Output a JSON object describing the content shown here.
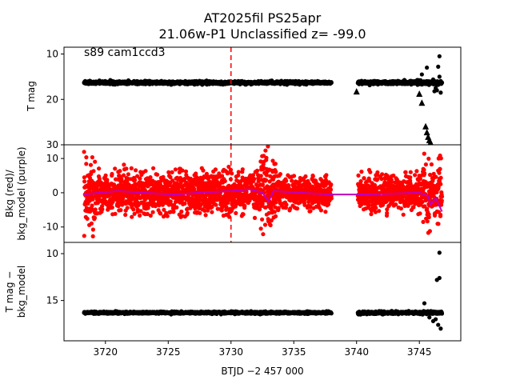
{
  "title_line1": "AT2025fil  PS25apr",
  "title_line2": "21.06w-P1 Unclassified z= -99.0",
  "xlabel": "BTJD −2 457 000",
  "annotation": "s89 cam1ccd3",
  "colors": {
    "points": "#000000",
    "bkg": "#ff0000",
    "model": "#bf00bf",
    "marker": "#ff0000"
  },
  "chart_data": [
    {
      "type": "scatter",
      "name": "light-curve",
      "ylabel": "T mag",
      "y_inverted": true,
      "xlim": [
        3716.7,
        3748.3
      ],
      "ylim": [
        30,
        8.5
      ],
      "yticks": [
        10,
        20,
        30
      ],
      "xticks": [],
      "vline": {
        "x": 3730.0,
        "style": "dashed"
      },
      "segments": [
        {
          "x": [
            3718.3,
            3738.0
          ],
          "y": 16.3,
          "noise": 0.35
        },
        {
          "x": [
            3740.1,
            3746.8
          ],
          "y": 16.3,
          "noise": 0.4
        }
      ],
      "outliers": [
        {
          "x": 3745.2,
          "y": 14.5
        },
        {
          "x": 3745.6,
          "y": 13.0
        },
        {
          "x": 3746.0,
          "y": 16.0
        },
        {
          "x": 3746.1,
          "y": 15.6
        },
        {
          "x": 3746.3,
          "y": 17.5
        },
        {
          "x": 3746.4,
          "y": 18.0
        },
        {
          "x": 3746.5,
          "y": 16.8
        },
        {
          "x": 3746.7,
          "y": 18.5
        },
        {
          "x": 3746.6,
          "y": 15.0
        },
        {
          "x": 3746.6,
          "y": 10.5
        },
        {
          "x": 3746.5,
          "y": 12.8
        },
        {
          "x": 3746.2,
          "y": 18.2
        }
      ],
      "upper_limits": [
        {
          "x": 3740.0,
          "y": 18.3
        },
        {
          "x": 3745.0,
          "y": 18.8
        },
        {
          "x": 3745.2,
          "y": 20.8
        },
        {
          "x": 3745.5,
          "y": 26.0
        },
        {
          "x": 3745.6,
          "y": 27.3
        },
        {
          "x": 3745.7,
          "y": 28.3
        },
        {
          "x": 3745.8,
          "y": 29.0
        },
        {
          "x": 3745.9,
          "y": 29.6
        },
        {
          "x": 3745.8,
          "y": 30.0
        }
      ]
    },
    {
      "type": "scatter",
      "name": "background",
      "ylabel_lines": [
        "Bkg (red)/",
        "bkg_model (purple)"
      ],
      "xlim": [
        3716.7,
        3748.3
      ],
      "ylim": [
        -14.5,
        14.0
      ],
      "yticks": [
        -10,
        0,
        10
      ],
      "xticks": [],
      "vline": {
        "x": 3730.0,
        "style": "dashed"
      },
      "segments": [
        {
          "x": [
            3718.3,
            3733.0
          ],
          "mean": 0.0,
          "noise": 4.5
        },
        {
          "x": [
            3733.0,
            3738.0
          ],
          "mean": 0.0,
          "noise": 3.5
        },
        {
          "x": [
            3740.1,
            3746.8
          ],
          "mean": 0.0,
          "noise": 4.0
        }
      ],
      "model": [
        {
          "x": 3718.3,
          "y": -0.5
        },
        {
          "x": 3719.5,
          "y": 0.0
        },
        {
          "x": 3721.0,
          "y": 0.5
        },
        {
          "x": 3723.0,
          "y": 0.0
        },
        {
          "x": 3725.5,
          "y": -0.5
        },
        {
          "x": 3727.5,
          "y": 0.0
        },
        {
          "x": 3730.0,
          "y": 0.5
        },
        {
          "x": 3731.5,
          "y": 1.0
        },
        {
          "x": 3732.5,
          "y": 0.0
        },
        {
          "x": 3733.0,
          "y": -2.5
        },
        {
          "x": 3733.4,
          "y": 0.5
        },
        {
          "x": 3735.5,
          "y": 0.0
        },
        {
          "x": 3738.0,
          "y": -0.5
        },
        {
          "x": 3740.1,
          "y": -0.5
        },
        {
          "x": 3742.5,
          "y": -0.3
        },
        {
          "x": 3745.0,
          "y": 0.0
        },
        {
          "x": 3745.7,
          "y": -1.0
        },
        {
          "x": 3745.9,
          "y": -3.5
        },
        {
          "x": 3746.3,
          "y": -1.5
        },
        {
          "x": 3746.8,
          "y": -5.5
        }
      ]
    },
    {
      "type": "scatter",
      "name": "residual",
      "ylabel_lines": [
        "T mag −",
        "bkg_model"
      ],
      "y_inverted": true,
      "xlim": [
        3716.7,
        3748.3
      ],
      "ylim": [
        19.3,
        8.8
      ],
      "yticks": [
        10,
        15
      ],
      "xticks": [
        3720,
        3725,
        3730,
        3735,
        3740,
        3745
      ],
      "segments": [
        {
          "x": [
            3718.3,
            3738.0
          ],
          "y": 16.3,
          "noise": 0.12
        },
        {
          "x": [
            3740.1,
            3746.8
          ],
          "y": 16.3,
          "noise": 0.15
        }
      ],
      "outliers": [
        {
          "x": 3746.6,
          "y": 9.9
        },
        {
          "x": 3746.4,
          "y": 12.8
        },
        {
          "x": 3746.6,
          "y": 12.6
        },
        {
          "x": 3745.4,
          "y": 15.3
        },
        {
          "x": 3746.0,
          "y": 16.2
        },
        {
          "x": 3746.3,
          "y": 17.0
        },
        {
          "x": 3746.5,
          "y": 17.6
        },
        {
          "x": 3746.7,
          "y": 18.0
        },
        {
          "x": 3746.1,
          "y": 17.2
        },
        {
          "x": 3745.8,
          "y": 16.8
        }
      ]
    }
  ]
}
